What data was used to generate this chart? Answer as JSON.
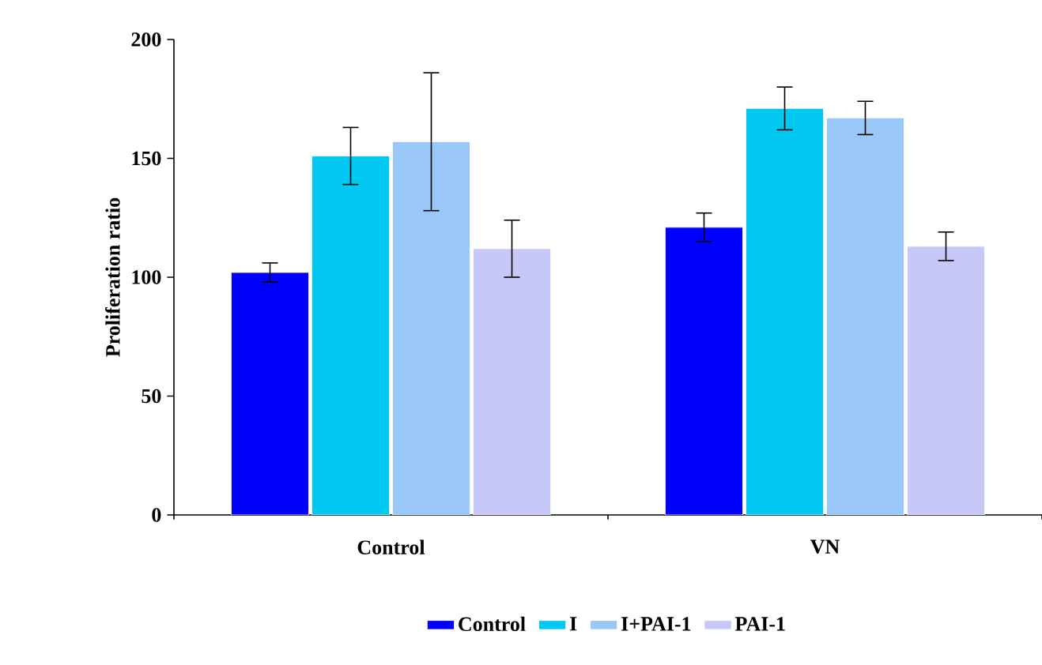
{
  "chart_data": {
    "type": "bar",
    "ylabel": "Proliferation ratio",
    "categories": [
      "Control",
      "VN"
    ],
    "series": [
      {
        "name": "Control",
        "color": "#0000ff",
        "values": [
          102,
          121
        ],
        "errors": [
          4,
          6
        ]
      },
      {
        "name": "I",
        "color": "#00c8f0",
        "values": [
          151,
          171
        ],
        "errors": [
          12,
          9
        ]
      },
      {
        "name": "I+PAI-1",
        "color": "#99c8f8",
        "values": [
          157,
          167
        ],
        "errors": [
          29,
          7
        ]
      },
      {
        "name": "PAI-1",
        "color": "#c8c8f8",
        "values": [
          112,
          113
        ],
        "errors": [
          12,
          6
        ]
      }
    ],
    "ylim": [
      0,
      200
    ],
    "yticks": [
      0,
      50,
      100,
      150,
      200
    ],
    "grid": false,
    "legend": "bottom"
  }
}
